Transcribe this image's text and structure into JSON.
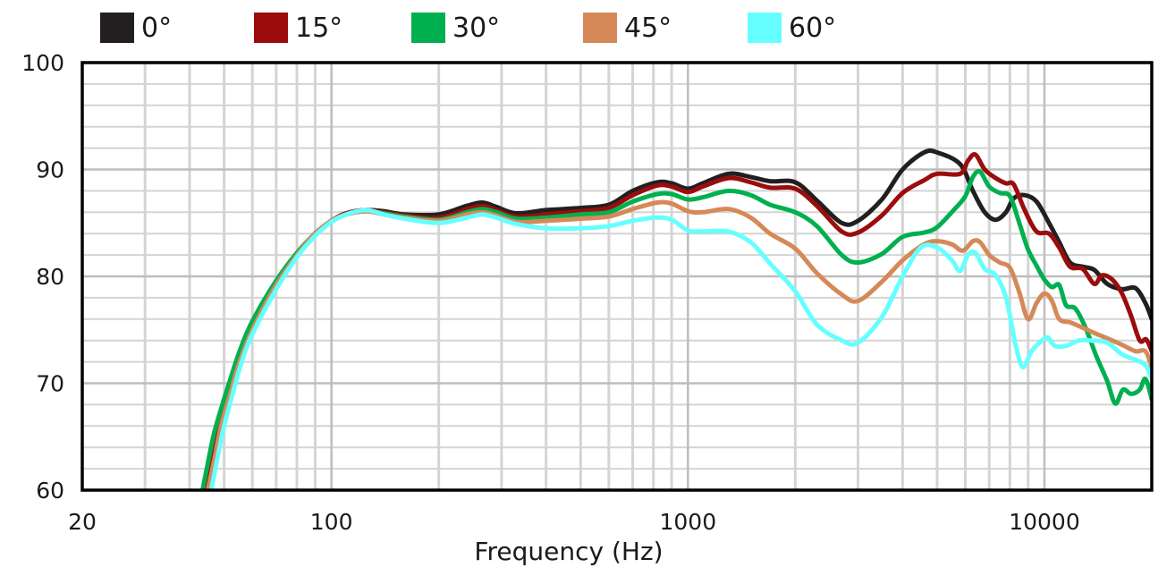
{
  "chart_data": {
    "type": "line",
    "title": "",
    "xlabel": "Frequency (Hz)",
    "ylabel": "",
    "xscale": "log",
    "xlim": [
      20,
      20000
    ],
    "ylim": [
      60,
      100
    ],
    "xticks": [
      20,
      100,
      1000,
      10000
    ],
    "xtick_labels": [
      "20",
      "100",
      "1000",
      "10000"
    ],
    "yticks": [
      60,
      70,
      80,
      90,
      100
    ],
    "ytick_labels": [
      "60",
      "70",
      "80",
      "90",
      "100"
    ],
    "grid": true,
    "legend_position": "top",
    "series": [
      {
        "name": "0°",
        "color": "#231f20",
        "points": [
          [
            44,
            60
          ],
          [
            46,
            63
          ],
          [
            48,
            66
          ],
          [
            50,
            68.5
          ],
          [
            55,
            72.5
          ],
          [
            60,
            75.5
          ],
          [
            70,
            79.5
          ],
          [
            80,
            82
          ],
          [
            90,
            84
          ],
          [
            100,
            85.2
          ],
          [
            110,
            85.9
          ],
          [
            125,
            86.2
          ],
          [
            140,
            86.1
          ],
          [
            160,
            85.8
          ],
          [
            200,
            85.8
          ],
          [
            240,
            86.6
          ],
          [
            265,
            86.9
          ],
          [
            290,
            86.5
          ],
          [
            330,
            85.9
          ],
          [
            400,
            86.2
          ],
          [
            500,
            86.4
          ],
          [
            600,
            86.7
          ],
          [
            700,
            88
          ],
          [
            820,
            88.8
          ],
          [
            900,
            88.7
          ],
          [
            1000,
            88.2
          ],
          [
            1100,
            88.7
          ],
          [
            1300,
            89.6
          ],
          [
            1500,
            89.3
          ],
          [
            1700,
            88.9
          ],
          [
            2000,
            88.8
          ],
          [
            2300,
            87.1
          ],
          [
            2700,
            85
          ],
          [
            3000,
            85.2
          ],
          [
            3500,
            87.2
          ],
          [
            4000,
            90
          ],
          [
            4600,
            91.6
          ],
          [
            5000,
            91.6
          ],
          [
            5800,
            90.5
          ],
          [
            6300,
            88
          ],
          [
            6800,
            86
          ],
          [
            7300,
            85.3
          ],
          [
            7800,
            86
          ],
          [
            8200,
            87.3
          ],
          [
            8800,
            87.6
          ],
          [
            9500,
            87
          ],
          [
            10300,
            85
          ],
          [
            11000,
            83.2
          ],
          [
            11800,
            81.3
          ],
          [
            12800,
            80.9
          ],
          [
            13800,
            80.6
          ],
          [
            15000,
            79.3
          ],
          [
            16500,
            78.8
          ],
          [
            18000,
            78.9
          ],
          [
            19200,
            77.5
          ],
          [
            20000,
            76
          ]
        ]
      },
      {
        "name": "15°",
        "color": "#9b0d0d",
        "points": [
          [
            44.5,
            60
          ],
          [
            46,
            62.5
          ],
          [
            48,
            65.2
          ],
          [
            50,
            67.8
          ],
          [
            55,
            72
          ],
          [
            60,
            75.3
          ],
          [
            70,
            79.3
          ],
          [
            80,
            82
          ],
          [
            90,
            84
          ],
          [
            100,
            85.2
          ],
          [
            110,
            85.9
          ],
          [
            125,
            86.2
          ],
          [
            140,
            86
          ],
          [
            160,
            85.7
          ],
          [
            200,
            85.5
          ],
          [
            240,
            86.3
          ],
          [
            265,
            86.6
          ],
          [
            290,
            86.2
          ],
          [
            330,
            85.6
          ],
          [
            400,
            85.8
          ],
          [
            500,
            86.1
          ],
          [
            600,
            86.4
          ],
          [
            700,
            87.6
          ],
          [
            820,
            88.5
          ],
          [
            900,
            88.4
          ],
          [
            1000,
            87.9
          ],
          [
            1100,
            88.4
          ],
          [
            1300,
            89.2
          ],
          [
            1500,
            88.8
          ],
          [
            1700,
            88.3
          ],
          [
            2000,
            88.2
          ],
          [
            2300,
            86.6
          ],
          [
            2700,
            84.2
          ],
          [
            3000,
            84.1
          ],
          [
            3500,
            85.7
          ],
          [
            4000,
            87.8
          ],
          [
            4600,
            89
          ],
          [
            5000,
            89.6
          ],
          [
            5800,
            89.6
          ],
          [
            6100,
            90.8
          ],
          [
            6400,
            91.4
          ],
          [
            6800,
            90
          ],
          [
            7300,
            89.2
          ],
          [
            7800,
            88.7
          ],
          [
            8200,
            88.6
          ],
          [
            8800,
            86.2
          ],
          [
            9500,
            84.2
          ],
          [
            10300,
            84
          ],
          [
            11000,
            82.7
          ],
          [
            11800,
            80.9
          ],
          [
            12800,
            80.7
          ],
          [
            13800,
            79.3
          ],
          [
            14500,
            80.1
          ],
          [
            15500,
            79.7
          ],
          [
            16500,
            78.4
          ],
          [
            17500,
            76.3
          ],
          [
            18500,
            74
          ],
          [
            19300,
            74.1
          ],
          [
            20000,
            73
          ]
        ]
      },
      {
        "name": "30°",
        "color": "#00b04f",
        "points": [
          [
            43.5,
            60
          ],
          [
            45,
            62.5
          ],
          [
            47,
            65.5
          ],
          [
            50,
            68.5
          ],
          [
            55,
            72.8
          ],
          [
            60,
            75.8
          ],
          [
            70,
            79.6
          ],
          [
            80,
            82.2
          ],
          [
            90,
            84
          ],
          [
            100,
            85.2
          ],
          [
            110,
            85.8
          ],
          [
            125,
            86.1
          ],
          [
            140,
            85.9
          ],
          [
            160,
            85.6
          ],
          [
            200,
            85.3
          ],
          [
            240,
            86
          ],
          [
            265,
            86.3
          ],
          [
            290,
            86
          ],
          [
            330,
            85.4
          ],
          [
            400,
            85.5
          ],
          [
            500,
            85.8
          ],
          [
            600,
            86
          ],
          [
            700,
            87
          ],
          [
            820,
            87.7
          ],
          [
            900,
            87.7
          ],
          [
            1000,
            87.2
          ],
          [
            1100,
            87.4
          ],
          [
            1300,
            88
          ],
          [
            1500,
            87.6
          ],
          [
            1700,
            86.7
          ],
          [
            2000,
            86
          ],
          [
            2300,
            84.7
          ],
          [
            2700,
            82
          ],
          [
            3000,
            81.3
          ],
          [
            3500,
            82.1
          ],
          [
            4000,
            83.7
          ],
          [
            4600,
            84.1
          ],
          [
            5000,
            84.6
          ],
          [
            5600,
            86.3
          ],
          [
            6000,
            87.5
          ],
          [
            6300,
            89.3
          ],
          [
            6600,
            89.8
          ],
          [
            7000,
            88.4
          ],
          [
            7500,
            87.8
          ],
          [
            8000,
            87.5
          ],
          [
            8500,
            85
          ],
          [
            9000,
            82.5
          ],
          [
            9500,
            81
          ],
          [
            10000,
            79.7
          ],
          [
            10500,
            79
          ],
          [
            11000,
            79.2
          ],
          [
            11500,
            77.3
          ],
          [
            12200,
            77
          ],
          [
            13000,
            75.3
          ],
          [
            14000,
            72.5
          ],
          [
            15000,
            70.2
          ],
          [
            15800,
            68.1
          ],
          [
            16600,
            69.4
          ],
          [
            17500,
            69
          ],
          [
            18500,
            69.4
          ],
          [
            19200,
            70.4
          ],
          [
            20000,
            68.5
          ]
        ]
      },
      {
        "name": "45°",
        "color": "#d68958",
        "points": [
          [
            45,
            60
          ],
          [
            47,
            63
          ],
          [
            49,
            66
          ],
          [
            52,
            69
          ],
          [
            55,
            71.8
          ],
          [
            60,
            75
          ],
          [
            70,
            79.2
          ],
          [
            80,
            82
          ],
          [
            90,
            84
          ],
          [
            100,
            85.2
          ],
          [
            110,
            85.8
          ],
          [
            125,
            86.1
          ],
          [
            140,
            85.8
          ],
          [
            160,
            85.5
          ],
          [
            200,
            85.2
          ],
          [
            240,
            85.8
          ],
          [
            265,
            86
          ],
          [
            290,
            85.7
          ],
          [
            330,
            85.1
          ],
          [
            400,
            85.2
          ],
          [
            500,
            85.4
          ],
          [
            600,
            85.6
          ],
          [
            700,
            86.3
          ],
          [
            820,
            86.9
          ],
          [
            900,
            86.8
          ],
          [
            1000,
            86.1
          ],
          [
            1100,
            86
          ],
          [
            1300,
            86.3
          ],
          [
            1500,
            85.5
          ],
          [
            1700,
            84
          ],
          [
            2000,
            82.6
          ],
          [
            2300,
            80.3
          ],
          [
            2700,
            78.3
          ],
          [
            3000,
            77.7
          ],
          [
            3500,
            79.5
          ],
          [
            4000,
            81.5
          ],
          [
            4600,
            83
          ],
          [
            5000,
            83.3
          ],
          [
            5500,
            83
          ],
          [
            5900,
            82.4
          ],
          [
            6300,
            83.3
          ],
          [
            6600,
            83.2
          ],
          [
            7000,
            82
          ],
          [
            7500,
            81.3
          ],
          [
            8000,
            80.8
          ],
          [
            8500,
            78.5
          ],
          [
            9000,
            76
          ],
          [
            9500,
            77.5
          ],
          [
            10000,
            78.4
          ],
          [
            10500,
            77.7
          ],
          [
            11000,
            76
          ],
          [
            11800,
            75.7
          ],
          [
            12800,
            75.2
          ],
          [
            13800,
            74.7
          ],
          [
            15000,
            74.2
          ],
          [
            16500,
            73.6
          ],
          [
            18000,
            73
          ],
          [
            19200,
            73
          ],
          [
            20000,
            71.5
          ]
        ]
      },
      {
        "name": "60°",
        "color": "#66ffff",
        "points": [
          [
            46,
            60
          ],
          [
            48,
            63.2
          ],
          [
            50,
            66
          ],
          [
            53,
            69.2
          ],
          [
            56,
            72
          ],
          [
            60,
            74.6
          ],
          [
            70,
            78.8
          ],
          [
            80,
            81.8
          ],
          [
            90,
            83.8
          ],
          [
            100,
            85.1
          ],
          [
            110,
            85.8
          ],
          [
            125,
            86.2
          ],
          [
            140,
            85.8
          ],
          [
            160,
            85.4
          ],
          [
            200,
            85
          ],
          [
            240,
            85.5
          ],
          [
            265,
            85.8
          ],
          [
            290,
            85.5
          ],
          [
            330,
            84.9
          ],
          [
            400,
            84.5
          ],
          [
            500,
            84.5
          ],
          [
            600,
            84.7
          ],
          [
            700,
            85.2
          ],
          [
            820,
            85.5
          ],
          [
            900,
            85.3
          ],
          [
            1000,
            84.3
          ],
          [
            1100,
            84.2
          ],
          [
            1300,
            84.2
          ],
          [
            1500,
            83.2
          ],
          [
            1700,
            81.2
          ],
          [
            2000,
            78.6
          ],
          [
            2300,
            75.5
          ],
          [
            2700,
            74
          ],
          [
            3000,
            73.8
          ],
          [
            3500,
            76.2
          ],
          [
            4000,
            80
          ],
          [
            4500,
            82.7
          ],
          [
            5000,
            82.7
          ],
          [
            5500,
            81.5
          ],
          [
            5800,
            80.5
          ],
          [
            6100,
            82
          ],
          [
            6400,
            82.2
          ],
          [
            6800,
            80.7
          ],
          [
            7300,
            80.1
          ],
          [
            7800,
            78
          ],
          [
            8300,
            73.6
          ],
          [
            8700,
            71.5
          ],
          [
            9200,
            73
          ],
          [
            9700,
            73.8
          ],
          [
            10200,
            74.3
          ],
          [
            10700,
            73.5
          ],
          [
            11500,
            73.5
          ],
          [
            12500,
            74
          ],
          [
            13500,
            74
          ],
          [
            15000,
            73.8
          ],
          [
            16500,
            72.7
          ],
          [
            18000,
            72.2
          ],
          [
            19200,
            71.7
          ],
          [
            20000,
            70.5
          ]
        ]
      }
    ]
  }
}
